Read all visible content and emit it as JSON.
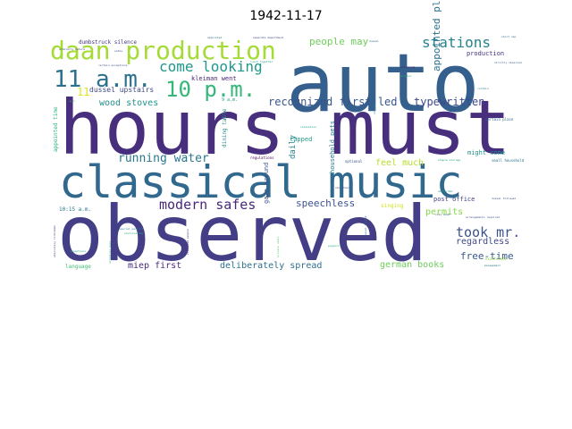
{
  "chart_data": {
    "type": "wordcloud",
    "title": "1942-11-17",
    "colormap": "viridis",
    "words": [
      {
        "text": "hours must",
        "weight": 100,
        "color": "#472f7d"
      },
      {
        "text": "observed",
        "weight": 98,
        "color": "#433e85"
      },
      {
        "text": "classical music",
        "weight": 72,
        "color": "#31688e"
      },
      {
        "text": "auto",
        "weight": 80,
        "color": "#355f8d"
      },
      {
        "text": "daan production",
        "weight": 30,
        "color": "#a5db36"
      },
      {
        "text": "11 a.m.",
        "weight": 27,
        "color": "#2c718e"
      },
      {
        "text": "10 p.m.",
        "weight": 25,
        "color": "#35b779"
      },
      {
        "text": "come looking",
        "weight": 17,
        "color": "#1f988b"
      },
      {
        "text": "stations",
        "weight": 16,
        "color": "#26828e"
      },
      {
        "text": "modern safes",
        "weight": 15,
        "color": "#482878"
      },
      {
        "text": "took mr.",
        "weight": 15,
        "color": "#3b528b"
      },
      {
        "text": "running water",
        "weight": 12,
        "color": "#2a788e"
      },
      {
        "text": "recognized first led",
        "weight": 12,
        "color": "#39568c"
      },
      {
        "text": "typewritten",
        "weight": 12,
        "color": "#3e4a89"
      },
      {
        "text": "people may",
        "weight": 11,
        "color": "#6ece58"
      },
      {
        "text": "appointed place",
        "weight": 11,
        "color": "#2c728e"
      },
      {
        "text": "speechless",
        "weight": 11,
        "color": "#3b528b"
      },
      {
        "text": "wood stoves",
        "weight": 10,
        "color": "#21918c"
      },
      {
        "text": "feel much",
        "weight": 10,
        "color": "#b5de2b"
      },
      {
        "text": "free-time",
        "weight": 10,
        "color": "#38598c"
      },
      {
        "text": "permits",
        "weight": 10,
        "color": "#86d549"
      },
      {
        "text": "regardless",
        "weight": 10,
        "color": "#3e4989"
      },
      {
        "text": "deliberately spread",
        "weight": 10,
        "color": "#2e6f8e"
      },
      {
        "text": "german books",
        "weight": 10,
        "color": "#6ccd5a"
      },
      {
        "text": "miep first",
        "weight": 9,
        "color": "#472c7a"
      },
      {
        "text": "11",
        "weight": 12,
        "color": "#dde318"
      },
      {
        "text": "daily",
        "weight": 9,
        "color": "#25838e"
      },
      {
        "text": "dussel upstairs",
        "weight": 8,
        "color": "#3f4889"
      },
      {
        "text": "kleiman went",
        "weight": 7,
        "color": "#482475"
      },
      {
        "text": "dumbstruck silence",
        "weight": 6,
        "color": "#443a83"
      },
      {
        "text": "production",
        "weight": 7,
        "color": "#46307e"
      },
      {
        "text": "might come",
        "weight": 7,
        "color": "#20928c"
      },
      {
        "text": "post office",
        "weight": 7,
        "color": "#404387"
      },
      {
        "text": "tapped",
        "weight": 7,
        "color": "#1f9a8a"
      },
      {
        "text": "household pets",
        "weight": 7,
        "color": "#287c8e"
      },
      {
        "text": "gaze around",
        "weight": 7,
        "color": "#3c4f8a"
      },
      {
        "text": "dining table",
        "weight": 6,
        "color": "#228d8d"
      },
      {
        "text": "appointed time",
        "weight": 6,
        "color": "#2ab07f"
      },
      {
        "text": "language",
        "weight": 6,
        "color": "#42be71"
      },
      {
        "text": "10:15 a.m.",
        "weight": 6,
        "color": "#2a788e"
      },
      {
        "text": "singing",
        "weight": 6,
        "color": "#d0e11c"
      },
      {
        "text": "9 a.m.",
        "weight": 5,
        "color": "#1fa088"
      },
      {
        "text": "regulations",
        "weight": 4,
        "color": "#440154"
      },
      {
        "text": "optional",
        "weight": 4,
        "color": "#3b528b"
      },
      {
        "text": "small household",
        "weight": 4,
        "color": "#2d718e"
      },
      {
        "text": "certain place",
        "weight": 4,
        "color": "#31678e"
      },
      {
        "text": "separate department",
        "weight": 3,
        "color": "#3f4788"
      },
      {
        "text": "appointed",
        "weight": 3,
        "color": "#2d708e"
      },
      {
        "text": "short nap",
        "weight": 3,
        "color": "#2e6e8e"
      },
      {
        "text": "lunch together",
        "weight": 3,
        "color": "#1f9e89"
      },
      {
        "text": "certain exceptions",
        "weight": 3,
        "color": "#3e4c8a"
      },
      {
        "text": "explained",
        "weight": 3,
        "color": "#481a6c"
      },
      {
        "text": "alcohol",
        "weight": 3,
        "color": "#31b57b"
      },
      {
        "text": "strictly observed",
        "weight": 3,
        "color": "#355e8d"
      },
      {
        "text": "curtain",
        "weight": 3,
        "color": "#2a768e"
      },
      {
        "text": "exactitude",
        "weight": 4,
        "color": "#95d840"
      },
      {
        "text": "amsterdam",
        "weight": 3,
        "color": "#1f9f88"
      },
      {
        "text": "arrangements required",
        "weight": 3,
        "color": "#3b528b"
      },
      {
        "text": "stations may",
        "weight": 3,
        "color": "#27ad81"
      },
      {
        "text": "absolutely forbidden",
        "weight": 3,
        "color": "#414487"
      },
      {
        "text": "scholarly nature",
        "weight": 3,
        "color": "#433d84"
      },
      {
        "text": "dussel tapped",
        "weight": 3,
        "color": "#2f6b8e"
      },
      {
        "text": "dussel followed",
        "weight": 3,
        "color": "#3d4e8a"
      },
      {
        "text": "payment",
        "weight": 3,
        "color": "#2fb47c"
      },
      {
        "text": "private radio",
        "weight": 3,
        "color": "#4ac16d"
      },
      {
        "text": "stepped",
        "weight": 3,
        "color": "#24878e"
      },
      {
        "text": "civilized people",
        "weight": 3,
        "color": "#46327e"
      },
      {
        "text": "exceptions",
        "weight": 3,
        "color": "#20a386"
      },
      {
        "text": "safes",
        "weight": 3,
        "color": "#3c4f8a"
      },
      {
        "text": "dussel",
        "weight": 3,
        "color": "#2c738e"
      },
      {
        "text": "relaxation",
        "weight": 3,
        "color": "#1fa187"
      },
      {
        "text": "streetcar back",
        "weight": 3,
        "color": "#29af7f"
      },
      {
        "text": "cozy wood",
        "weight": 3,
        "color": "#34618d"
      },
      {
        "text": "p.m.",
        "weight": 3,
        "color": "#5ec962"
      },
      {
        "text": "staple storage",
        "weight": 3,
        "color": "#20a486"
      },
      {
        "text": "shorthand",
        "weight": 3,
        "color": "#3d4d8a"
      },
      {
        "text": "special permits",
        "weight": 3,
        "color": "#25858e"
      },
      {
        "text": "management",
        "weight": 3,
        "color": "#2a778e"
      }
    ]
  }
}
